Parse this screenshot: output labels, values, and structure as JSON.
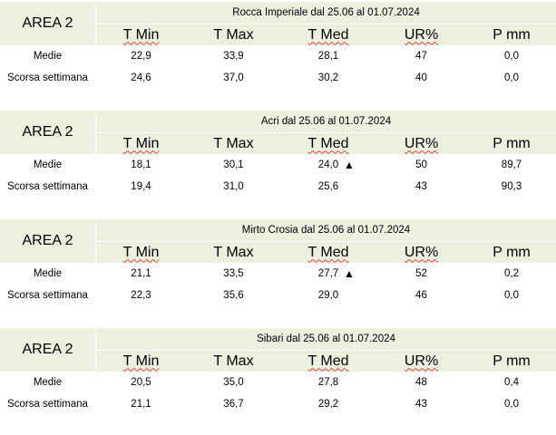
{
  "area_label": "AREA 2",
  "columns": [
    "T Min",
    "T Max",
    "T Med",
    "UR%",
    "P mm"
  ],
  "row_labels": {
    "medie": "Medie",
    "scorsa": "Scorsa settimana"
  },
  "arrow_symbol": "▲",
  "stations": [
    {
      "title": "Rocca Imperiale  dal 25.06 al 01.07.2024",
      "medie": [
        "22,9",
        "33,9",
        "28,1",
        "47",
        "0,0"
      ],
      "scorsa": [
        "24,6",
        "37,0",
        "30,2",
        "40",
        "0,0"
      ],
      "arrow": false
    },
    {
      "title": "Acri dal 25.06 al 01.07.2024",
      "medie": [
        "18,1",
        "30,1",
        "24,0",
        "50",
        "89,7"
      ],
      "scorsa": [
        "19,4",
        "31,0",
        "25,6",
        "43",
        "90,3"
      ],
      "arrow": true
    },
    {
      "title": "Mirto Crosia dal 25.06 al 01.07.2024",
      "medie": [
        "21,1",
        "33,5",
        "27,7",
        "52",
        "0,2"
      ],
      "scorsa": [
        "22,3",
        "35,6",
        "29,0",
        "46",
        "0,0"
      ],
      "arrow": true
    },
    {
      "title": "Sibari dal 25.06 al 01.07.2024",
      "medie": [
        "20,5",
        "35,0",
        "27,8",
        "48",
        "0,4"
      ],
      "scorsa": [
        "21,1",
        "36,7",
        "29,2",
        "43",
        "0,0"
      ],
      "arrow": false
    }
  ]
}
